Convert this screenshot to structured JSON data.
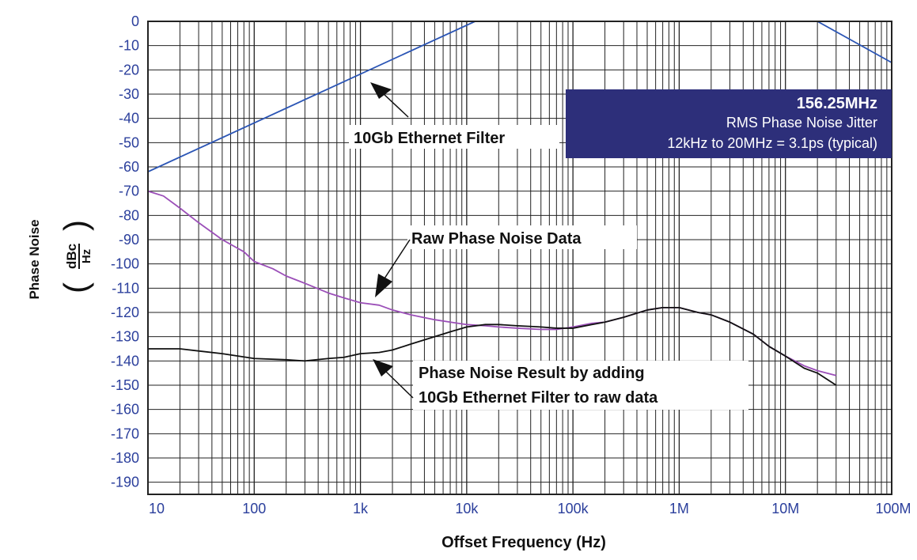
{
  "chart_data": {
    "type": "line",
    "x_scale": "log",
    "xlim": [
      10,
      100000000
    ],
    "ylim": [
      -195,
      0
    ],
    "grid": true,
    "xlabel": "Offset Frequency (Hz)",
    "ylabel": "Phase Noise",
    "ylabel_units": {
      "numerator": "dBc",
      "denominator": "Hz"
    },
    "x_ticks": [
      10,
      100,
      1000,
      10000,
      100000,
      1000000,
      10000000,
      100000000
    ],
    "x_tick_labels": [
      "10",
      "100",
      "1k",
      "10k",
      "100k",
      "1M",
      "10M",
      "100M"
    ],
    "y_ticks": [
      0,
      -10,
      -20,
      -30,
      -40,
      -50,
      -60,
      -70,
      -80,
      -90,
      -100,
      -110,
      -120,
      -130,
      -140,
      -150,
      -160,
      -170,
      -180,
      -190
    ],
    "y_tick_labels": [
      "0",
      "-10",
      "-20",
      "-30",
      "-40",
      "-50",
      "-60",
      "-70",
      "-80",
      "-90",
      "-100",
      "-110",
      "-120",
      "-130",
      "-140",
      "-150",
      "-160",
      "-170",
      "-180",
      "-190"
    ],
    "series": [
      {
        "name": "10Gb Ethernet Filter",
        "color": "#2b55b5",
        "x": [
          10,
          12000,
          20000000,
          100000000
        ],
        "y": [
          -62,
          0,
          0,
          -17
        ]
      },
      {
        "name": "Raw Phase Noise Data",
        "color": "#9b4fb8",
        "x": [
          10,
          14,
          20,
          30,
          50,
          80,
          100,
          150,
          200,
          300,
          500,
          700,
          1000,
          1500,
          2000,
          3000,
          5000,
          7000,
          10000,
          15000,
          20000,
          30000,
          50000,
          70000,
          100000,
          150000,
          200000,
          300000,
          500000,
          700000,
          1000000,
          1500000,
          2000000,
          3000000,
          5000000,
          7000000,
          10000000,
          15000000,
          20000000,
          30000000
        ],
        "y": [
          -70,
          -72,
          -77,
          -83,
          -90,
          -95,
          -99,
          -102,
          -105,
          -108,
          -112,
          -114,
          -116,
          -117,
          -119,
          -121,
          -123,
          -124,
          -125,
          -125.5,
          -126,
          -126.5,
          -127,
          -127,
          -126,
          -124.5,
          -124,
          -122,
          -119,
          -118,
          -118,
          -120,
          -121,
          -124,
          -129,
          -134,
          -138,
          -142,
          -144,
          -146
        ]
      },
      {
        "name": "Phase Noise Result by adding 10Gb Ethernet Filter to raw data",
        "color": "#111111",
        "x": [
          10,
          20,
          50,
          100,
          200,
          300,
          500,
          700,
          1000,
          1500,
          2000,
          3000,
          5000,
          7000,
          10000,
          15000,
          20000,
          30000,
          50000,
          70000,
          100000,
          150000,
          200000,
          300000,
          500000,
          700000,
          1000000,
          1500000,
          2000000,
          3000000,
          5000000,
          7000000,
          10000000,
          15000000,
          20000000,
          30000000
        ],
        "y": [
          -135,
          -135,
          -137,
          -139,
          -139.5,
          -140,
          -139,
          -138.5,
          -137,
          -136.5,
          -135.5,
          -133,
          -130,
          -128,
          -126,
          -125,
          -125,
          -125.5,
          -126,
          -126.5,
          -126.5,
          -125,
          -124,
          -122,
          -119,
          -118,
          -118,
          -120,
          -121,
          -124,
          -129,
          -134,
          -138,
          -143,
          -145,
          -150
        ]
      }
    ],
    "annotations": {
      "filter_label": "10Gb Ethernet Filter",
      "raw_label": "Raw Phase Noise Data",
      "result_label_line1": "Phase Noise Result by adding",
      "result_label_line2": "10Gb Ethernet Filter to raw data"
    },
    "info_box": {
      "title": "156.25MHz",
      "line1": "RMS Phase Noise Jitter",
      "line2": "12kHz to 20MHz = 3.1ps (typical)",
      "background": "#2d2f7a"
    },
    "grid_color": "#222222"
  }
}
